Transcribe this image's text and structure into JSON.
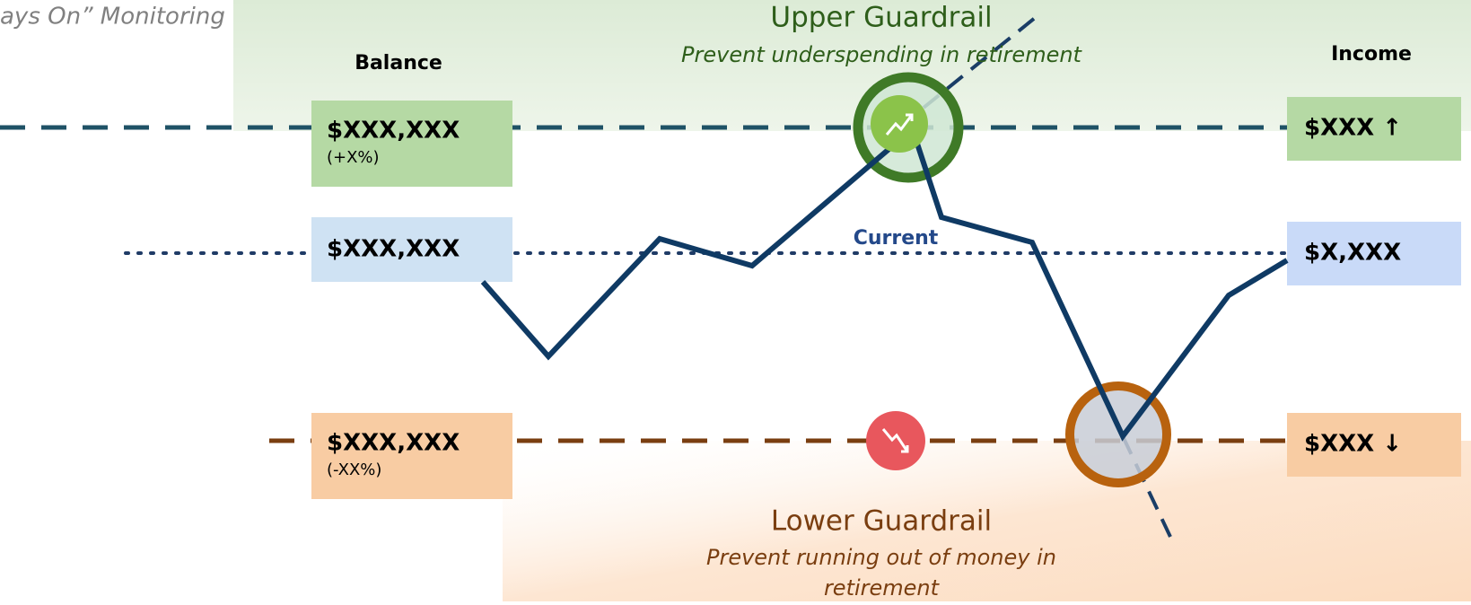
{
  "header": {
    "title": "ays On” Monitoring"
  },
  "columns": {
    "balance": "Balance",
    "income": "Income"
  },
  "upper": {
    "title": "Upper Guardrail",
    "subtitle": [
      "Prevent underspending in retirement"
    ]
  },
  "current": {
    "label": "Current"
  },
  "lower": {
    "title": "Lower Guardrail",
    "subtitle": [
      "Prevent running out of money in",
      "retirement"
    ]
  },
  "balance_boxes": [
    {
      "value": "$XXX,XXX",
      "change": "(+X%)"
    },
    {
      "value": "$XXX,XXX"
    },
    {
      "value": "$XXX,XXX",
      "change": "(-XX%)"
    }
  ],
  "income_boxes": [
    {
      "value": "$XXX ↑"
    },
    {
      "value": "$X,XXX"
    },
    {
      "value": "$XXX ↓"
    }
  ]
}
